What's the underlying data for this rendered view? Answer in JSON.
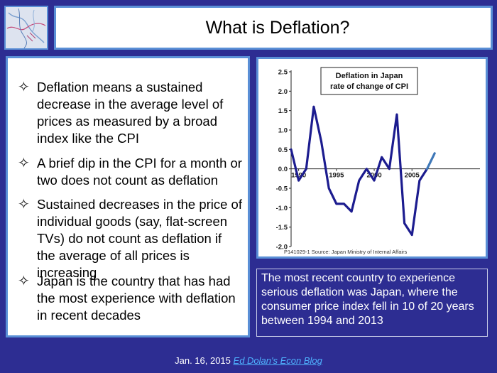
{
  "title": "What is Deflation?",
  "logo": {
    "name": "decorative-logo"
  },
  "bullets": [
    {
      "marker": "✧",
      "text": "Deflation means a sustained decrease in the average level of prices as measured by a broad index like the CPI"
    },
    {
      "marker": "✧",
      "text": "A brief dip in the CPI for a month or two does not count as deflation"
    },
    {
      "marker": "✧",
      "text": "Sustained decreases in the price of individual goods (say, flat-screen TVs) do not count as deflation if the average of all prices is increasing"
    },
    {
      "marker": "✧",
      "text": "Japan is the country that has had the most experience with deflation in recent decades"
    }
  ],
  "note": "The most recent country to experience serious deflation was Japan, where the consumer price index fell in 10 of 20 years between 1994 and 2013",
  "footer": {
    "date": "Jan. 16, 2015",
    "link_text": "Ed Dolan's Econ Blog"
  },
  "chart_data": {
    "type": "line",
    "title": "Deflation in Japan",
    "subtitle": "rate of change of CPI",
    "source": "P141029-1 Source: Japan Ministry of Internal Affairs",
    "xlabel": "",
    "ylabel": "",
    "x_ticks": [
      "1990",
      "1995",
      "2000",
      "2005"
    ],
    "y_ticks": [
      "2.5",
      "2.0",
      "1.5",
      "1.0",
      "0.5",
      "0.0",
      "-0.5",
      "-1.0",
      "-1.5",
      "-2.0"
    ],
    "xlim": [
      1989,
      2014
    ],
    "ylim": [
      -2.0,
      2.5
    ],
    "grid": false,
    "legend": "none",
    "series_color": "#1c1c8f",
    "series_tail_color": "#3f78b8",
    "series": [
      {
        "x": [
          1989,
          1990,
          1991,
          1992,
          1993,
          1994,
          1995,
          1996,
          1997,
          1998,
          1999,
          2000,
          2001,
          2002,
          2003,
          2004,
          2005,
          2006,
          2007,
          2008
        ],
        "values": [
          0.5,
          -0.3,
          0.0,
          1.6,
          0.7,
          -0.5,
          -0.9,
          -0.9,
          -1.1,
          -0.3,
          0.0,
          -0.3,
          0.3,
          0.0,
          1.4,
          -1.4,
          -1.7,
          -0.3,
          0.0,
          0.4
        ]
      }
    ]
  }
}
